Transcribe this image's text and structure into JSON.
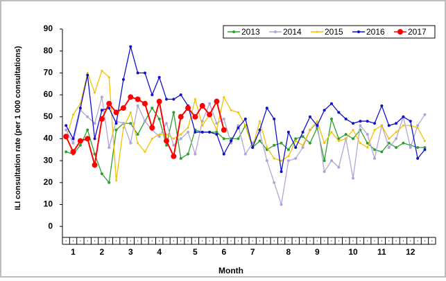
{
  "chart_data": {
    "type": "line",
    "y_label": "ILI consultation rate (per 1 000 consultations)",
    "x_label": "Month",
    "categories": [
      null,
      "1",
      null,
      null,
      null,
      "2",
      null,
      null,
      null,
      "3",
      null,
      null,
      null,
      "4",
      null,
      null,
      null,
      null,
      "5",
      null,
      null,
      null,
      "6",
      null,
      null,
      null,
      "7",
      null,
      null,
      null,
      null,
      "8",
      null,
      null,
      null,
      "9",
      null,
      null,
      null,
      null,
      "10",
      null,
      null,
      null,
      "11",
      null,
      null,
      null,
      "12",
      null,
      null,
      null
    ],
    "series": [
      {
        "name": "2013",
        "color": "#2ca02c",
        "marker": 2,
        "values": [
          34,
          33,
          37,
          44,
          33,
          24,
          20,
          44,
          47,
          47,
          42,
          48,
          54,
          49,
          37,
          52,
          31,
          33,
          44,
          43,
          43,
          43,
          40,
          40,
          40,
          46,
          36,
          39,
          35,
          37,
          38,
          35,
          40,
          41,
          38,
          45,
          30,
          49,
          40,
          42,
          40,
          44,
          38,
          35,
          34,
          38,
          36,
          38,
          37,
          36,
          36,
          null
        ]
      },
      {
        "name": "2014",
        "color": "#b0a6d6",
        "marker": 2,
        "values": [
          44,
          38,
          53,
          50,
          47,
          59,
          36,
          48,
          47,
          38,
          55,
          48,
          44,
          41,
          47,
          37,
          40,
          43,
          33,
          48,
          56,
          47,
          49,
          38,
          46,
          33,
          38,
          43,
          30,
          20,
          10,
          30,
          31,
          36,
          44,
          47,
          25,
          30,
          27,
          40,
          22,
          46,
          42,
          31,
          46,
          36,
          40,
          50,
          36,
          46,
          51,
          null
        ]
      },
      {
        "name": "2015",
        "color": "#f2c200",
        "marker": 1.5,
        "values": [
          40,
          51,
          56,
          70,
          61,
          71,
          68,
          21,
          45,
          52,
          38,
          34,
          40,
          42,
          42,
          40,
          42,
          45,
          58,
          46,
          51,
          44,
          59,
          53,
          52,
          46,
          36,
          48,
          36,
          31,
          30,
          32,
          39,
          37,
          44,
          48,
          38,
          43,
          39,
          40,
          44,
          38,
          36,
          44,
          46,
          40,
          43,
          46,
          46,
          45,
          39,
          null
        ]
      },
      {
        "name": "2016",
        "color": "#1010cc",
        "marker": 2,
        "values": [
          46,
          40,
          54,
          69,
          40,
          53,
          54,
          47,
          67,
          82,
          70,
          70,
          60,
          68,
          58,
          58,
          60,
          55,
          43,
          43,
          43,
          42,
          33,
          39,
          45,
          49,
          36,
          44,
          54,
          49,
          25,
          43,
          36,
          43,
          50,
          46,
          53,
          56,
          52,
          49,
          47,
          48,
          48,
          47,
          55,
          46,
          47,
          50,
          48,
          31,
          35,
          null
        ]
      },
      {
        "name": "2017",
        "color": "#ff0000",
        "marker": 4,
        "values": [
          41,
          34,
          39,
          40,
          28,
          49,
          56,
          52,
          54,
          59,
          58,
          56,
          45,
          57,
          39,
          32,
          50,
          54,
          50,
          55,
          51,
          57,
          44,
          null,
          null,
          null,
          null,
          null,
          null,
          null,
          null,
          null,
          null,
          null,
          null,
          null,
          null,
          null,
          null,
          null,
          null,
          null,
          null,
          null,
          null,
          null,
          null,
          null,
          null,
          null,
          null,
          null
        ]
      }
    ],
    "ylim": [
      -5,
      90
    ],
    "yticks": [
      0,
      10,
      20,
      30,
      40,
      50,
      60,
      70,
      80,
      90
    ],
    "legend": "top-right"
  }
}
